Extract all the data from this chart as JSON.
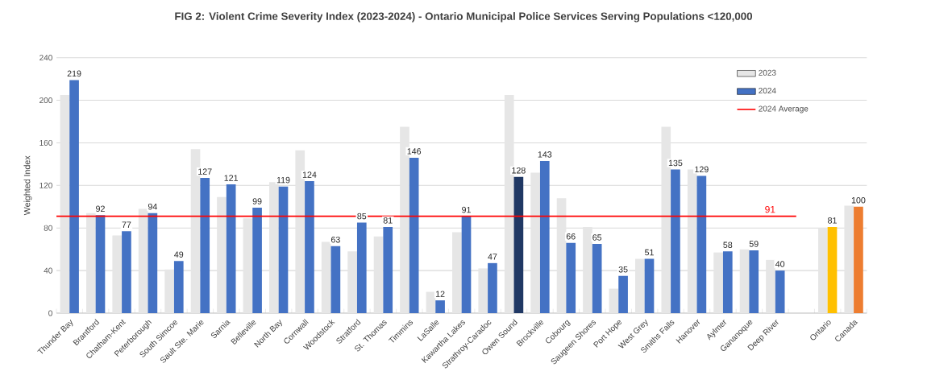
{
  "chart_data": {
    "type": "bar",
    "title": "FIG 2: Violent Crime Severity Index (2023-2024) - Ontario Municipal Police Services Serving Populations <120,000",
    "ylabel": "Weighted Index",
    "categories": [
      "Thunder Bay",
      "Brantford",
      "Chatham-Kent",
      "Peterborough",
      "South Simcoe",
      "Sault Ste. Marie",
      "Sarnia",
      "Belleville",
      "North Bay",
      "Cornwall",
      "Woodstock",
      "Stratford",
      "St. Thomas",
      "Timmins",
      "LaSalle",
      "Kawartha Lakes",
      "Strathroy-Caradoc",
      "Owen Sound",
      "Brockville",
      "Cobourg",
      "Saugeen Shores",
      "Port Hope",
      "West Grey",
      "Smiths Falls",
      "Hanover",
      "Aylmer",
      "Gananoque",
      "Deep River",
      null,
      "Ontario",
      "Canada"
    ],
    "series": [
      {
        "name": "2023",
        "color": "#e6e6e6",
        "values": [
          205,
          94,
          73,
          98,
          41,
          154,
          109,
          89,
          123,
          153,
          67,
          58,
          72,
          175,
          20,
          76,
          42,
          205,
          132,
          108,
          81,
          23,
          51,
          175,
          135,
          57,
          60,
          50,
          null,
          80,
          101
        ]
      },
      {
        "name": "2024",
        "color": "#4472c4",
        "colors": [
          "#4472c4",
          "#4472c4",
          "#4472c4",
          "#4472c4",
          "#4472c4",
          "#4472c4",
          "#4472c4",
          "#4472c4",
          "#4472c4",
          "#4472c4",
          "#4472c4",
          "#4472c4",
          "#4472c4",
          "#4472c4",
          "#4472c4",
          "#4472c4",
          "#4472c4",
          "#203864",
          "#4472c4",
          "#4472c4",
          "#4472c4",
          "#4472c4",
          "#4472c4",
          "#4472c4",
          "#4472c4",
          "#4472c4",
          "#4472c4",
          "#4472c4",
          "#4472c4",
          "#ffc000",
          "#ed7d31"
        ],
        "values": [
          219,
          92,
          77,
          94,
          49,
          127,
          121,
          99,
          119,
          124,
          63,
          85,
          81,
          146,
          12,
          91,
          47,
          128,
          143,
          66,
          65,
          35,
          51,
          135,
          129,
          58,
          59,
          40,
          null,
          81,
          100
        ],
        "value_labels": [
          "219",
          "92",
          "77",
          "94",
          "49",
          "127",
          "121",
          "99",
          "119",
          "124",
          "63",
          "85",
          "81",
          "146",
          "12",
          "91",
          "47",
          "128",
          "143",
          "66",
          "65",
          "35",
          "51",
          "135",
          "129",
          "58",
          "59",
          "40",
          null,
          "81",
          "100"
        ]
      }
    ],
    "ref_lines": [
      {
        "axis": "y",
        "value": 91,
        "label": "2024 Average",
        "color": "#ff0000"
      }
    ],
    "annotations": [
      "91"
    ],
    "ylim": [
      0,
      240
    ],
    "yticks": [
      0,
      40,
      80,
      120,
      160,
      200,
      240
    ],
    "grid": "y",
    "legend": "top right"
  }
}
